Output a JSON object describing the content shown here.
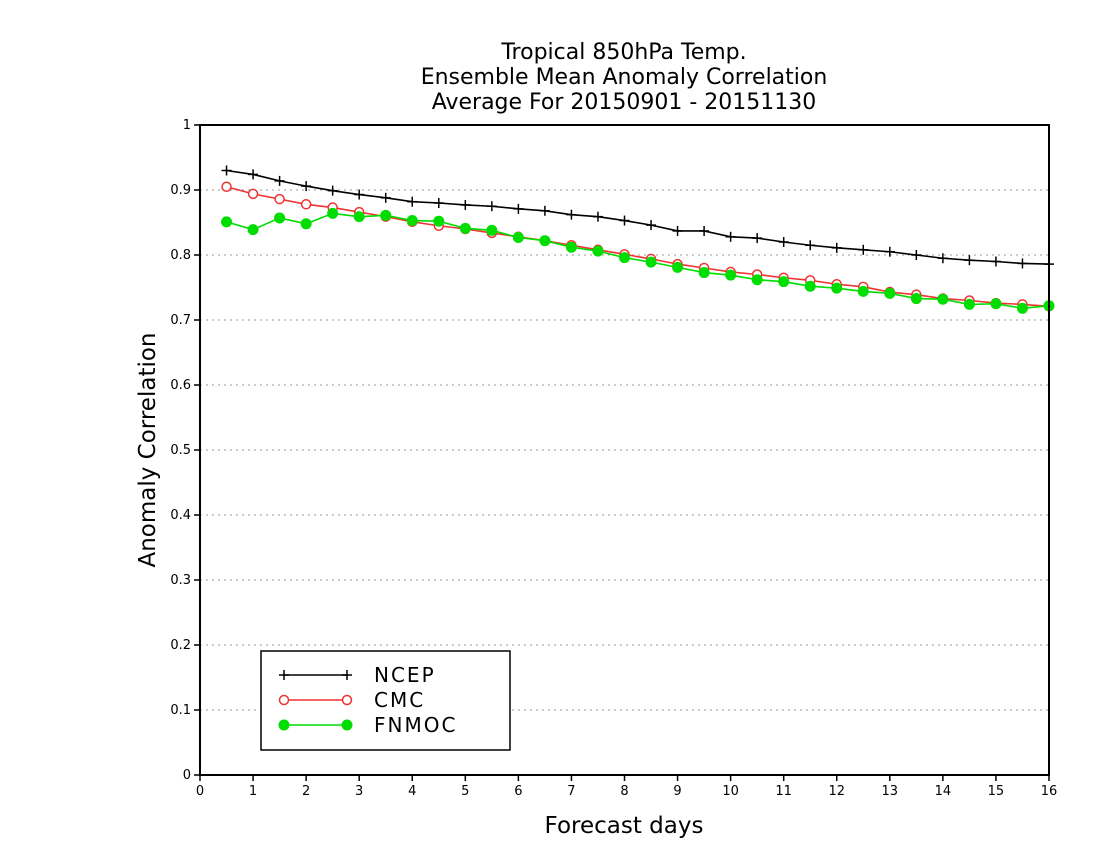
{
  "chart_data": {
    "type": "line",
    "title_lines": [
      "Tropical 850hPa Temp.",
      "Ensemble Mean Anomaly Correlation",
      "Average For 20150901 - 20151130"
    ],
    "xlabel": "Forecast days",
    "ylabel": "Anomaly Correlation",
    "xlim": [
      0,
      16
    ],
    "ylim": [
      0,
      1
    ],
    "xticks": [
      0,
      1,
      2,
      3,
      4,
      5,
      6,
      7,
      8,
      9,
      10,
      11,
      12,
      13,
      14,
      15,
      16
    ],
    "xtick_labels": [
      "0",
      "1",
      "2",
      "3",
      "4",
      "5",
      "6",
      "7",
      "8",
      "9",
      "10",
      "11",
      "12",
      "13",
      "14",
      "15",
      "16"
    ],
    "yticks": [
      0,
      0.1,
      0.2,
      0.3,
      0.4,
      0.5,
      0.6,
      0.7,
      0.8,
      0.9,
      1
    ],
    "ytick_labels": [
      "0",
      "0.1",
      "0.2",
      "0.3",
      "0.4",
      "0.5",
      "0.6",
      "0.7",
      "0.8",
      "0.9",
      "1"
    ],
    "grid": "horizontal dotted",
    "legend_position": "bottom-left",
    "x": [
      0.5,
      1,
      1.5,
      2,
      2.5,
      3,
      3.5,
      4,
      4.5,
      5,
      5.5,
      6,
      6.5,
      7,
      7.5,
      8,
      8.5,
      9,
      9.5,
      10,
      10.5,
      11,
      11.5,
      12,
      12.5,
      13,
      13.5,
      14,
      14.5,
      15,
      15.5,
      16
    ],
    "series": [
      {
        "name": "NCEP",
        "color": "#000000",
        "marker": "plus",
        "values": [
          0.93,
          0.924,
          0.914,
          0.906,
          0.899,
          0.893,
          0.888,
          0.882,
          0.88,
          0.877,
          0.875,
          0.871,
          0.868,
          0.862,
          0.859,
          0.853,
          0.846,
          0.837,
          0.837,
          0.828,
          0.826,
          0.82,
          0.815,
          0.811,
          0.808,
          0.805,
          0.8,
          0.795,
          0.792,
          0.79,
          0.787,
          0.786
        ]
      },
      {
        "name": "CMC",
        "color": "#ee3333",
        "marker": "open-circle",
        "values": [
          0.905,
          0.894,
          0.886,
          0.878,
          0.873,
          0.866,
          0.859,
          0.851,
          0.845,
          0.84,
          0.834,
          0.828,
          0.822,
          0.815,
          0.808,
          0.801,
          0.794,
          0.786,
          0.78,
          0.774,
          0.77,
          0.765,
          0.761,
          0.755,
          0.751,
          0.743,
          0.739,
          0.733,
          0.73,
          0.726,
          0.724,
          0.721
        ]
      },
      {
        "name": "FNMOC",
        "color": "#00dd00",
        "marker": "filled-circle",
        "values": [
          0.851,
          0.839,
          0.857,
          0.848,
          0.864,
          0.859,
          0.861,
          0.853,
          0.852,
          0.841,
          0.838,
          0.827,
          0.822,
          0.812,
          0.806,
          0.796,
          0.789,
          0.781,
          0.773,
          0.769,
          0.762,
          0.759,
          0.752,
          0.749,
          0.744,
          0.741,
          0.733,
          0.732,
          0.724,
          0.725,
          0.718,
          0.722
        ]
      }
    ]
  }
}
